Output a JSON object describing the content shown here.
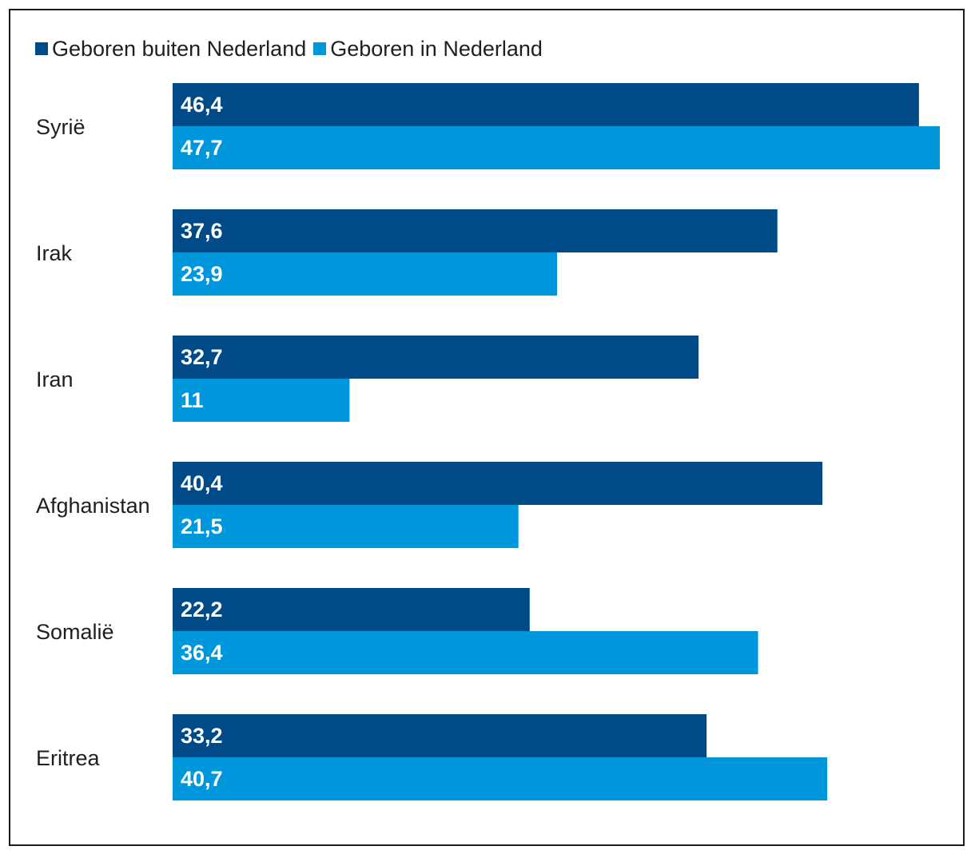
{
  "chart_data": {
    "type": "bar",
    "orientation": "horizontal",
    "categories": [
      "Syrië",
      "Irak",
      "Iran",
      "Afghanistan",
      "Somalië",
      "Eritrea"
    ],
    "series": [
      {
        "name": "Geboren buiten Nederland",
        "color": "#004a87",
        "values": [
          46.4,
          37.6,
          32.7,
          40.4,
          22.2,
          33.2
        ],
        "value_labels": [
          "46,4",
          "37,6",
          "32,7",
          "40,4",
          "22,2",
          "33,2"
        ]
      },
      {
        "name": "Geboren in Nederland",
        "color": "#0096db",
        "values": [
          47.7,
          23.9,
          11,
          21.5,
          36.4,
          40.7
        ],
        "value_labels": [
          "47,7",
          "23,9",
          "11",
          "21,5",
          "36,4",
          "40,7"
        ]
      }
    ],
    "legend_position": "top-left",
    "grid": false
  }
}
